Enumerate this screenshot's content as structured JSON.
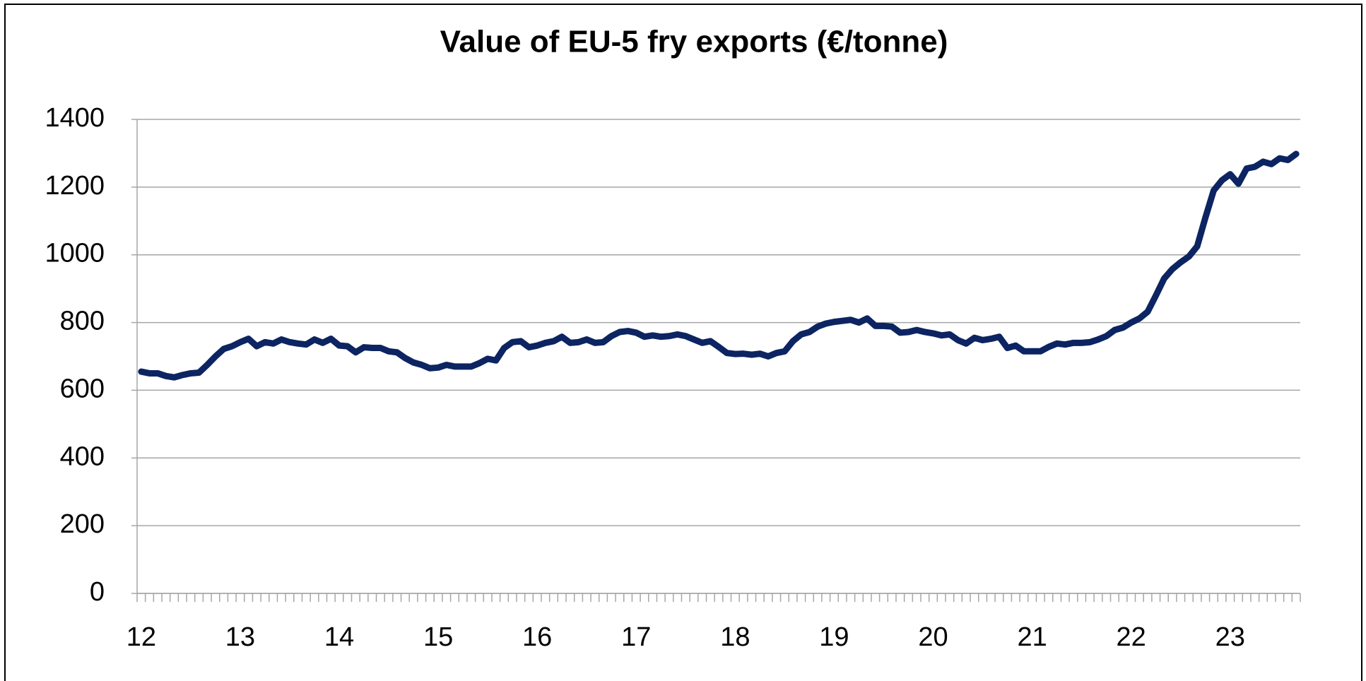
{
  "chart_data": {
    "type": "line",
    "title": "Value of EU-5 fry exports (€/tonne)",
    "categories": [
      "12",
      null,
      null,
      null,
      null,
      null,
      null,
      null,
      null,
      null,
      null,
      null,
      "13",
      null,
      null,
      null,
      null,
      null,
      null,
      null,
      null,
      null,
      null,
      null,
      "14",
      null,
      null,
      null,
      null,
      null,
      null,
      null,
      null,
      null,
      null,
      null,
      "15",
      null,
      null,
      null,
      null,
      null,
      null,
      null,
      null,
      null,
      null,
      null,
      "16",
      null,
      null,
      null,
      null,
      null,
      null,
      null,
      null,
      null,
      null,
      null,
      "17",
      null,
      null,
      null,
      null,
      null,
      null,
      null,
      null,
      null,
      null,
      null,
      "18",
      null,
      null,
      null,
      null,
      null,
      null,
      null,
      null,
      null,
      null,
      null,
      "19",
      null,
      null,
      null,
      null,
      null,
      null,
      null,
      null,
      null,
      null,
      null,
      "20",
      null,
      null,
      null,
      null,
      null,
      null,
      null,
      null,
      null,
      null,
      null,
      "21",
      null,
      null,
      null,
      null,
      null,
      null,
      null,
      null,
      null,
      null,
      null,
      "22",
      null,
      null,
      null,
      null,
      null,
      null,
      null,
      null,
      null,
      null,
      null,
      "23",
      null,
      null,
      null,
      null,
      null,
      null,
      null,
      null
    ],
    "series": [
      {
        "name": "EU-5 fry exports",
        "color": "#0c2461",
        "values": [
          655,
          650,
          650,
          642,
          638,
          645,
          650,
          652,
          675,
          700,
          722,
          730,
          742,
          752,
          730,
          742,
          738,
          750,
          742,
          738,
          735,
          750,
          740,
          752,
          732,
          730,
          712,
          727,
          725,
          725,
          715,
          712,
          695,
          682,
          675,
          665,
          667,
          675,
          670,
          670,
          670,
          680,
          693,
          688,
          725,
          742,
          745,
          727,
          732,
          740,
          745,
          758,
          740,
          742,
          750,
          740,
          742,
          760,
          772,
          775,
          770,
          758,
          762,
          758,
          760,
          765,
          760,
          750,
          740,
          745,
          728,
          710,
          707,
          708,
          705,
          708,
          700,
          710,
          715,
          745,
          765,
          772,
          788,
          797,
          802,
          805,
          808,
          800,
          812,
          790,
          790,
          788,
          770,
          772,
          778,
          772,
          768,
          762,
          765,
          748,
          738,
          755,
          748,
          752,
          758,
          725,
          732,
          715,
          715,
          715,
          728,
          738,
          735,
          740,
          740,
          742,
          750,
          760,
          778,
          785,
          800,
          812,
          832,
          880,
          930,
          958,
          978,
          995,
          1025,
          1110,
          1190,
          1220,
          1238,
          1210,
          1255,
          1260,
          1275,
          1268,
          1285,
          1280,
          1298
        ]
      }
    ],
    "ylim": [
      0,
      1400
    ],
    "yticks": [
      0,
      200,
      400,
      600,
      800,
      1000,
      1200,
      1400
    ],
    "grid": true
  }
}
